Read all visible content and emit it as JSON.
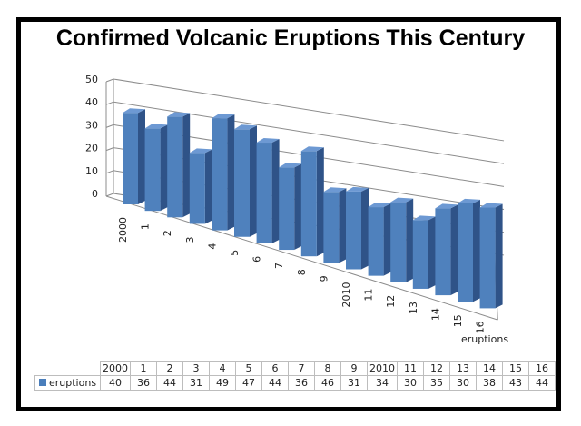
{
  "title": "Confirmed Volcanic Eruptions This Century",
  "colors": {
    "bar_front": "#4f81bd",
    "bar_side": "#2f5388",
    "bar_top": "#6d99d3",
    "grid": "#8c8c8c",
    "frame": "#000000"
  },
  "chart_data": {
    "type": "bar",
    "subtype": "3d-column",
    "title": "Confirmed Volcanic Eruptions This Century",
    "categories": [
      "2000",
      "1",
      "2",
      "3",
      "4",
      "5",
      "6",
      "7",
      "8",
      "9",
      "2010",
      "11",
      "12",
      "13",
      "14",
      "15",
      "16"
    ],
    "series": [
      {
        "name": "eruptions",
        "values": [
          40,
          36,
          44,
          31,
          49,
          47,
          44,
          36,
          46,
          31,
          34,
          30,
          35,
          30,
          38,
          43,
          44
        ]
      }
    ],
    "xlabel": "",
    "ylabel": "",
    "depth_axis_label": "eruptions",
    "y_ticks": [
      0,
      10,
      20,
      30,
      40,
      50
    ],
    "ylim": [
      0,
      50
    ],
    "grid": true,
    "legend": "data-table",
    "data_table": true
  },
  "table": {
    "series_label": "eruptions"
  }
}
